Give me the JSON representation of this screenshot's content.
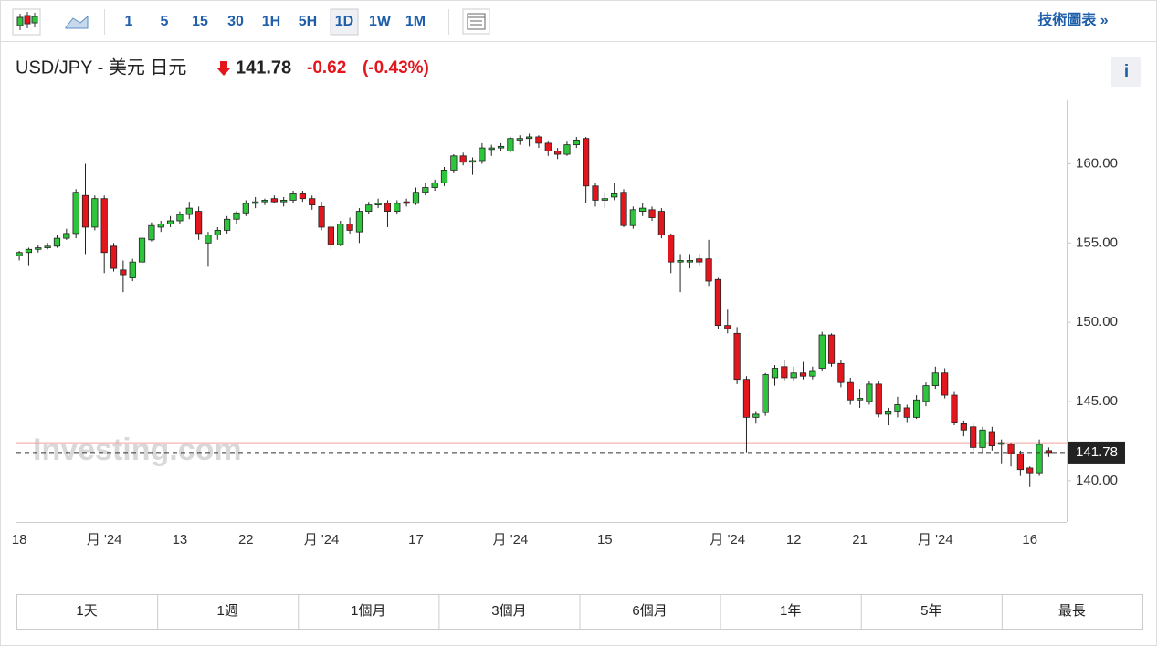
{
  "toolbar": {
    "intervals": [
      "1",
      "5",
      "15",
      "30",
      "1H",
      "5H",
      "1D",
      "1W",
      "1M"
    ],
    "active": "1D",
    "link": "技術圖表 »"
  },
  "header": {
    "title": "USD/JPY - 美元 日元",
    "change": "-0.62",
    "change_pct": "(-0.43%)",
    "info": "i"
  },
  "watermark": "Investing.com",
  "ranges": [
    "1天",
    "1週",
    "1個月",
    "3個月",
    "6個月",
    "1年",
    "5年",
    "最長"
  ],
  "chart_data": {
    "type": "candlestick",
    "categories": [
      "18",
      null,
      null,
      null,
      null,
      null,
      null,
      null,
      null,
      "月 '24",
      null,
      null,
      null,
      null,
      null,
      null,
      null,
      "13",
      null,
      null,
      null,
      null,
      null,
      null,
      "22",
      null,
      null,
      null,
      null,
      null,
      null,
      null,
      "月 '24",
      null,
      null,
      null,
      null,
      null,
      null,
      null,
      null,
      null,
      "17",
      null,
      null,
      null,
      null,
      null,
      null,
      null,
      null,
      null,
      "月 '24",
      null,
      null,
      null,
      null,
      null,
      null,
      null,
      null,
      null,
      "15",
      null,
      null,
      null,
      null,
      null,
      null,
      null,
      null,
      null,
      null,
      null,
      null,
      "月 '24",
      null,
      null,
      null,
      null,
      null,
      null,
      "12",
      null,
      null,
      null,
      null,
      null,
      null,
      "21",
      null,
      null,
      null,
      null,
      null,
      null,
      null,
      "月 '24",
      null,
      null,
      null,
      null,
      null,
      null,
      null,
      null,
      null,
      "16",
      null,
      null
    ],
    "open": [
      154.2,
      154.4,
      154.6,
      154.7,
      154.8,
      155.3,
      155.6,
      158.0,
      156.0,
      157.8,
      154.8,
      153.3,
      152.8,
      153.8,
      155.2,
      156.0,
      156.2,
      156.4,
      156.8,
      157.0,
      155.0,
      155.5,
      155.8,
      156.5,
      156.9,
      157.5,
      157.6,
      157.8,
      157.6,
      157.7,
      158.1,
      157.8,
      157.3,
      156.0,
      154.9,
      156.2,
      155.7,
      157.0,
      157.4,
      157.5,
      157.0,
      157.6,
      157.5,
      158.2,
      158.5,
      158.8,
      159.6,
      160.5,
      160.1,
      160.2,
      160.9,
      161.0,
      160.8,
      161.5,
      161.6,
      161.7,
      161.3,
      160.8,
      160.6,
      161.2,
      161.6,
      158.6,
      157.7,
      157.9,
      158.2,
      156.1,
      157.0,
      157.1,
      157.0,
      155.5,
      153.8,
      153.8,
      154.0,
      154.0,
      152.7,
      149.8,
      149.3,
      146.4,
      144.0,
      144.3,
      146.5,
      147.2,
      146.5,
      146.8,
      146.6,
      147.1,
      149.2,
      147.4,
      146.2,
      145.1,
      145.0,
      146.1,
      144.2,
      144.4,
      144.6,
      144.0,
      145.0,
      146.0,
      146.8,
      145.4,
      143.6,
      143.4,
      142.1,
      143.1,
      142.3,
      142.3,
      141.7,
      140.8,
      140.5,
      141.9
    ],
    "high": [
      154.5,
      154.7,
      154.9,
      155.0,
      155.5,
      155.9,
      158.4,
      160.0,
      158.0,
      158.0,
      155.0,
      153.9,
      154.0,
      155.5,
      156.3,
      156.4,
      156.7,
      157.0,
      157.6,
      157.3,
      155.7,
      156.0,
      156.7,
      157.0,
      157.7,
      157.9,
      157.8,
      158.0,
      157.9,
      158.3,
      158.3,
      158.0,
      157.6,
      156.1,
      156.4,
      156.6,
      157.2,
      157.6,
      157.8,
      157.7,
      157.7,
      157.8,
      158.5,
      158.8,
      159.0,
      159.8,
      160.6,
      160.7,
      160.4,
      161.3,
      161.2,
      161.3,
      161.7,
      161.8,
      161.9,
      161.8,
      161.4,
      161.0,
      161.4,
      161.7,
      161.7,
      158.8,
      158.2,
      158.8,
      158.4,
      157.3,
      157.5,
      157.3,
      157.2,
      155.6,
      154.3,
      154.3,
      154.3,
      155.2,
      152.8,
      150.8,
      149.7,
      146.6,
      144.4,
      146.8,
      147.3,
      147.6,
      147.2,
      147.5,
      147.2,
      149.4,
      149.3,
      147.6,
      146.5,
      145.8,
      146.3,
      146.3,
      144.6,
      145.3,
      144.8,
      145.4,
      146.2,
      147.2,
      147.1,
      145.6,
      143.8,
      143.6,
      143.4,
      143.4,
      142.6,
      142.4,
      141.9,
      140.9,
      142.6,
      142.1
    ],
    "low": [
      153.9,
      153.6,
      154.4,
      154.6,
      154.7,
      155.2,
      155.3,
      154.3,
      155.8,
      153.1,
      153.2,
      151.9,
      152.6,
      153.6,
      155.1,
      155.7,
      156.0,
      156.2,
      156.5,
      155.2,
      153.5,
      155.2,
      155.6,
      156.2,
      156.7,
      157.2,
      157.4,
      157.5,
      157.3,
      157.5,
      157.6,
      157.1,
      155.8,
      154.6,
      154.8,
      155.6,
      155.0,
      156.8,
      157.2,
      156.0,
      156.8,
      157.3,
      157.4,
      158.0,
      158.3,
      158.6,
      159.4,
      159.9,
      159.3,
      160.0,
      160.5,
      160.8,
      160.7,
      161.2,
      161.1,
      161.0,
      160.5,
      160.3,
      160.5,
      161.0,
      157.5,
      157.3,
      157.2,
      157.7,
      156.0,
      155.9,
      156.7,
      156.4,
      155.3,
      153.1,
      151.9,
      153.4,
      153.6,
      152.3,
      149.6,
      149.3,
      146.1,
      141.8,
      143.6,
      144.1,
      146.0,
      146.3,
      146.3,
      146.4,
      146.4,
      146.9,
      147.2,
      145.9,
      144.8,
      144.6,
      144.8,
      144.0,
      143.5,
      144.0,
      143.7,
      143.9,
      144.7,
      145.8,
      145.2,
      143.5,
      142.8,
      141.9,
      141.8,
      141.9,
      141.1,
      140.9,
      140.3,
      139.6,
      140.3,
      141.5
    ],
    "close": [
      154.4,
      154.6,
      154.7,
      154.8,
      155.3,
      155.6,
      158.2,
      156.0,
      157.8,
      154.4,
      153.4,
      153.0,
      153.8,
      155.3,
      156.1,
      156.2,
      156.4,
      156.8,
      157.2,
      155.6,
      155.5,
      155.8,
      156.5,
      156.9,
      157.5,
      157.6,
      157.7,
      157.6,
      157.7,
      158.1,
      157.8,
      157.4,
      156.0,
      154.9,
      156.2,
      155.8,
      157.0,
      157.4,
      157.5,
      157.0,
      157.5,
      157.5,
      158.2,
      158.5,
      158.8,
      159.6,
      160.5,
      160.1,
      160.2,
      161.0,
      161.0,
      161.1,
      161.6,
      161.6,
      161.7,
      161.3,
      160.8,
      160.6,
      161.2,
      161.5,
      158.6,
      157.7,
      157.8,
      158.1,
      156.1,
      157.1,
      157.2,
      156.6,
      155.5,
      153.8,
      153.9,
      153.9,
      153.8,
      152.6,
      149.8,
      149.6,
      146.4,
      144.0,
      144.2,
      146.7,
      147.1,
      146.5,
      146.8,
      146.6,
      146.9,
      149.2,
      147.4,
      146.2,
      145.1,
      145.2,
      146.1,
      144.2,
      144.4,
      144.8,
      144.0,
      145.1,
      146.0,
      146.8,
      145.4,
      143.7,
      143.2,
      142.1,
      143.2,
      142.2,
      142.4,
      141.7,
      140.7,
      140.5,
      142.3,
      141.78
    ],
    "up_color": "#2ec43c",
    "down_color": "#e3161d",
    "last": 141.78,
    "ref_line": 142.4,
    "ref_color": "#f2a0a0",
    "ylim": [
      137.4,
      164.0
    ],
    "yticks": [
      {
        "value": 140,
        "label": "140.00"
      },
      {
        "value": 145,
        "label": "145.00"
      },
      {
        "value": 150,
        "label": "150.00"
      },
      {
        "value": 155,
        "label": "155.00"
      },
      {
        "value": 160,
        "label": "160.00"
      }
    ]
  }
}
